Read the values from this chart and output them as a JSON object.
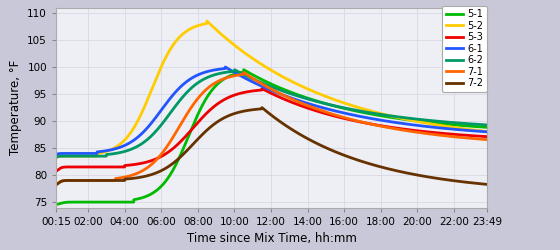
{
  "xlabel": "Time since Mix Time, hh:mm",
  "ylabel": "Temperature, °F",
  "ylim": [
    74,
    111
  ],
  "yticks": [
    75,
    80,
    85,
    90,
    95,
    100,
    105,
    110
  ],
  "background_color": "#c8c8d8",
  "plot_bg_color": "#eeeef5",
  "grid_color": "#ccccdd",
  "series": [
    {
      "label": "5-1",
      "color": "#00bb00",
      "init": 74.5,
      "plateau": 75.0,
      "peak": 99.5,
      "peak_t": 630,
      "end": 87.5,
      "rise_start": 270,
      "init_rise_end": 60,
      "lw": 2.0
    },
    {
      "label": "5-2",
      "color": "#ffcc00",
      "init": 83.0,
      "plateau": 83.5,
      "peak": 108.5,
      "peak_t": 510,
      "end": 85.5,
      "rise_start": 150,
      "init_rise_end": 30,
      "lw": 2.0
    },
    {
      "label": "5-3",
      "color": "#ee0000",
      "init": 80.5,
      "plateau": 81.5,
      "peak": 96.0,
      "peak_t": 690,
      "end": 86.0,
      "rise_start": 240,
      "init_rise_end": 45,
      "lw": 2.0
    },
    {
      "label": "6-1",
      "color": "#2255ff",
      "init": 83.5,
      "plateau": 84.0,
      "peak": 100.0,
      "peak_t": 570,
      "end": 86.5,
      "rise_start": 150,
      "init_rise_end": 30,
      "lw": 2.0
    },
    {
      "label": "6-2",
      "color": "#009966",
      "init": 83.0,
      "plateau": 83.5,
      "peak": 99.5,
      "peak_t": 600,
      "end": 88.0,
      "rise_start": 180,
      "init_rise_end": 30,
      "lw": 2.0
    },
    {
      "label": "7-1",
      "color": "#ff6600",
      "init": 78.0,
      "plateau": 79.0,
      "peak": 99.0,
      "peak_t": 630,
      "end": 85.0,
      "rise_start": 210,
      "init_rise_end": 45,
      "lw": 2.0
    },
    {
      "label": "7-2",
      "color": "#663300",
      "init": 78.0,
      "plateau": 79.0,
      "peak": 92.5,
      "peak_t": 690,
      "end": 76.5,
      "rise_start": 240,
      "init_rise_end": 45,
      "lw": 2.0
    }
  ],
  "x_start_minutes": 15,
  "x_end_minutes": 1429,
  "xtick_labels": [
    "00:15",
    "02:00",
    "04:00",
    "06:00",
    "08:00",
    "10:00",
    "12:00",
    "14:00",
    "16:00",
    "18:00",
    "20:00",
    "22:00",
    "23:49"
  ],
  "xtick_minutes": [
    15,
    120,
    240,
    360,
    480,
    600,
    720,
    840,
    960,
    1080,
    1200,
    1320,
    1429
  ]
}
